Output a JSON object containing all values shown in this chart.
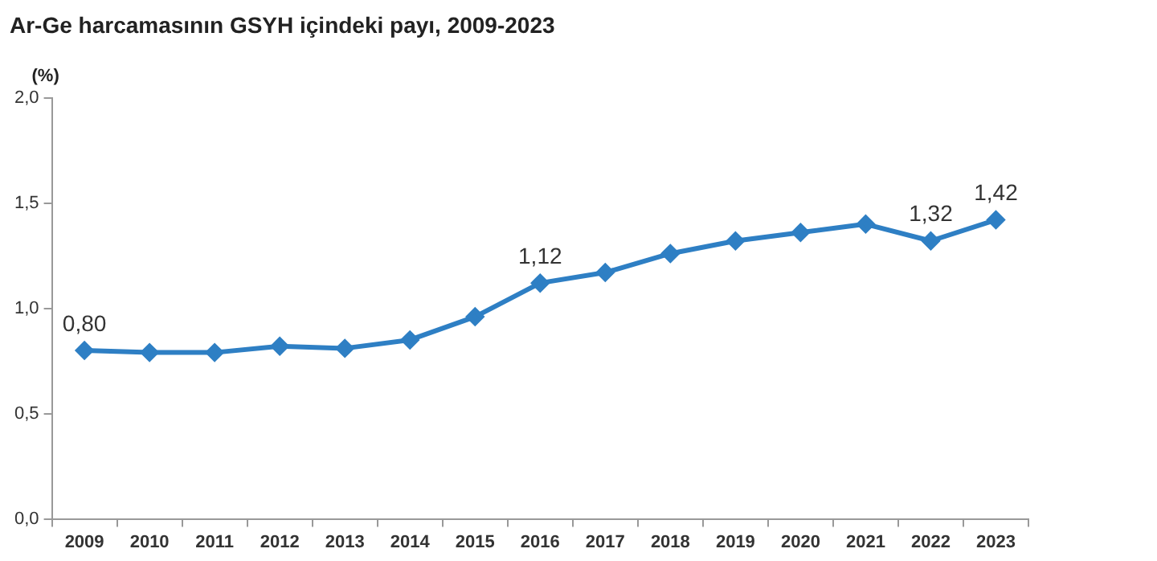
{
  "chart_data": {
    "type": "line",
    "title": "Ar-Ge harcamasının GSYH içindeki payı, 2009-2023",
    "ylabel": "(%)",
    "categories": [
      "2009",
      "2010",
      "2011",
      "2012",
      "2013",
      "2014",
      "2015",
      "2016",
      "2017",
      "2018",
      "2019",
      "2020",
      "2021",
      "2022",
      "2023"
    ],
    "series": [
      {
        "color": "#2e7fc4",
        "values": [
          0.8,
          0.79,
          0.79,
          0.82,
          0.81,
          0.85,
          0.96,
          1.12,
          1.17,
          1.26,
          1.32,
          1.36,
          1.4,
          1.32,
          1.42
        ],
        "value_labels": [
          "0,80",
          null,
          null,
          null,
          null,
          null,
          null,
          "1,12",
          null,
          null,
          null,
          null,
          null,
          "1,32",
          "1,42"
        ]
      }
    ],
    "ylim": [
      0,
      2
    ],
    "yticks": [
      {
        "value": 0,
        "label": "0,0"
      },
      {
        "value": 0.5,
        "label": "0,5"
      },
      {
        "value": 1,
        "label": "1,0"
      },
      {
        "value": 1.5,
        "label": "1,5"
      },
      {
        "value": 2,
        "label": "2,0"
      }
    ],
    "grid": false,
    "legend": false,
    "marker": "diamond",
    "line_style": "solid"
  }
}
